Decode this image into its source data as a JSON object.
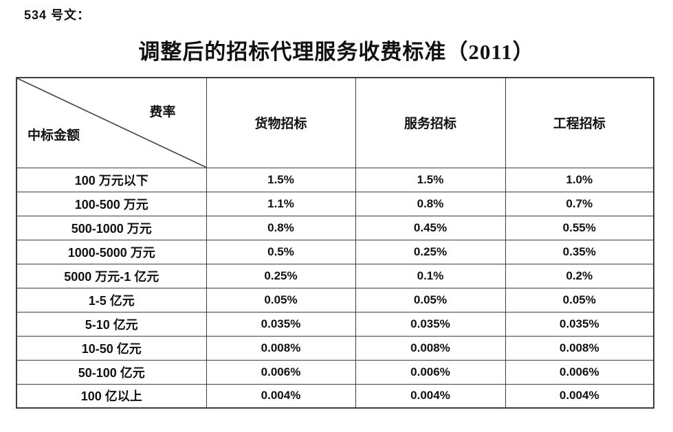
{
  "page": {
    "doc_label": "534 号文：",
    "title": "调整后的招标代理服务收费标准（2011）"
  },
  "table": {
    "corner": {
      "top_right_label": "费率",
      "bottom_left_label": "中标金额"
    },
    "columns": [
      "货物招标",
      "服务招标",
      "工程招标"
    ],
    "rows": [
      {
        "amount": "100 万元以下",
        "values": [
          "1.5%",
          "1.5%",
          "1.0%"
        ]
      },
      {
        "amount": "100-500 万元",
        "values": [
          "1.1%",
          "0.8%",
          "0.7%"
        ]
      },
      {
        "amount": "500-1000 万元",
        "values": [
          "0.8%",
          "0.45%",
          "0.55%"
        ]
      },
      {
        "amount": "1000-5000 万元",
        "values": [
          "0.5%",
          "0.25%",
          "0.35%"
        ]
      },
      {
        "amount": "5000 万元-1 亿元",
        "values": [
          "0.25%",
          "0.1%",
          "0.2%"
        ]
      },
      {
        "amount": "1-5 亿元",
        "values": [
          "0.05%",
          "0.05%",
          "0.05%"
        ]
      },
      {
        "amount": "5-10 亿元",
        "values": [
          "0.035%",
          "0.035%",
          "0.035%"
        ]
      },
      {
        "amount": "10-50 亿元",
        "values": [
          "0.008%",
          "0.008%",
          "0.008%"
        ]
      },
      {
        "amount": "50-100 亿元",
        "values": [
          "0.006%",
          "0.006%",
          "0.006%"
        ]
      },
      {
        "amount": "100 亿以上",
        "values": [
          "0.004%",
          "0.004%",
          "0.004%"
        ]
      }
    ]
  },
  "colors": {
    "text": "#111111",
    "border": "#3d3d3d",
    "background": "#ffffff"
  }
}
